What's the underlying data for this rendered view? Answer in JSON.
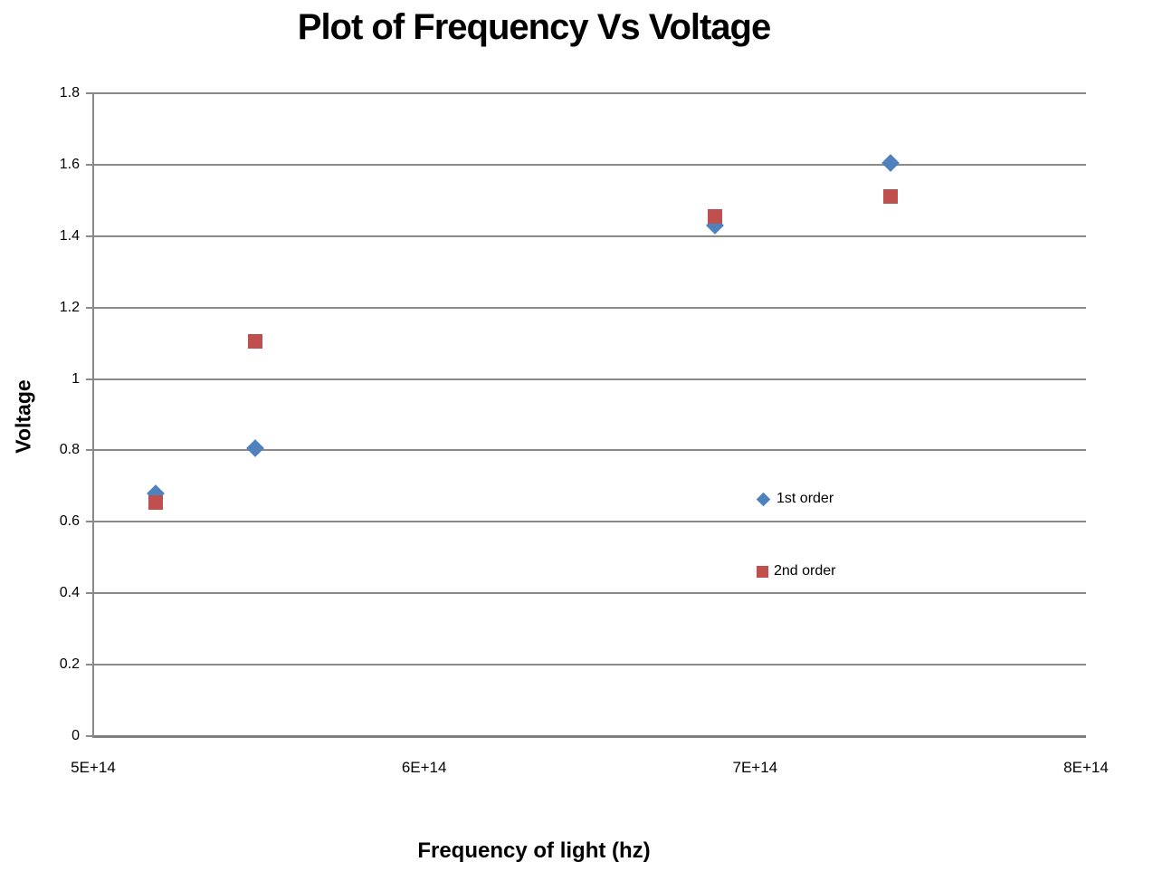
{
  "chart_data": {
    "type": "scatter",
    "title": "Plot of Frequency Vs Voltage",
    "xlabel": "Frequency of light (hz)",
    "ylabel": "Voltage",
    "xlim": [
      500000000000000.0,
      800000000000000.0
    ],
    "ylim": [
      0,
      1.8
    ],
    "grid": "horizontal",
    "legend_position": "inside-right",
    "x_ticks": [
      {
        "value": 500000000000000.0,
        "label": "5E+14"
      },
      {
        "value": 600000000000000.0,
        "label": "6E+14"
      },
      {
        "value": 700000000000000.0,
        "label": "7E+14"
      },
      {
        "value": 800000000000000.0,
        "label": "8E+14"
      }
    ],
    "y_ticks": [
      {
        "value": 0,
        "label": "0"
      },
      {
        "value": 0.2,
        "label": "0.2"
      },
      {
        "value": 0.4,
        "label": "0.4"
      },
      {
        "value": 0.6,
        "label": "0.6"
      },
      {
        "value": 0.8,
        "label": "0.8"
      },
      {
        "value": 1,
        "label": "1"
      },
      {
        "value": 1.2,
        "label": "1.2"
      },
      {
        "value": 1.4,
        "label": "1.4"
      },
      {
        "value": 1.6,
        "label": "1.6"
      },
      {
        "value": 1.8,
        "label": "1.8"
      }
    ],
    "series": [
      {
        "name": "1st order",
        "marker": "diamond",
        "color": "#4F81BD",
        "points": [
          {
            "x": 519000000000000.0,
            "y": 0.68
          },
          {
            "x": 549000000000000.0,
            "y": 0.805
          },
          {
            "x": 688000000000000.0,
            "y": 1.43
          },
          {
            "x": 741000000000000.0,
            "y": 1.605
          }
        ]
      },
      {
        "name": "2nd order",
        "marker": "square",
        "color": "#C0504D",
        "points": [
          {
            "x": 519000000000000.0,
            "y": 0.655
          },
          {
            "x": 549000000000000.0,
            "y": 1.105
          },
          {
            "x": 688000000000000.0,
            "y": 1.455
          },
          {
            "x": 741000000000000.0,
            "y": 1.51
          }
        ]
      }
    ],
    "colors": {
      "gridline": "#8A8A8A",
      "axis_line": "#7F7F7F",
      "text": "#000000"
    }
  }
}
